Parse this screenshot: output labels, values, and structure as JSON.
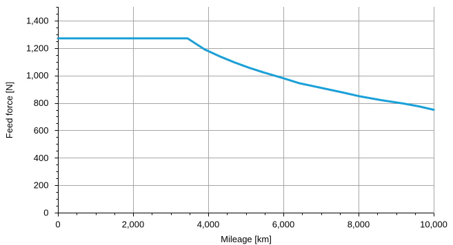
{
  "chart_data": {
    "type": "line",
    "title": "",
    "xlabel": "Mileage [km]",
    "ylabel": "Feed force [N]",
    "xlim": [
      0,
      10000
    ],
    "ylim": [
      0,
      1500
    ],
    "x_ticks": [
      0,
      2000,
      4000,
      6000,
      8000,
      10000
    ],
    "x_tick_labels": [
      "0",
      "2,000",
      "4,000",
      "6,000",
      "8,000",
      "10,000"
    ],
    "y_ticks": [
      0,
      200,
      400,
      600,
      800,
      1000,
      1200,
      1400
    ],
    "y_tick_labels": [
      "0",
      "200",
      "400",
      "600",
      "800",
      "1,000",
      "1,200",
      "1,400"
    ],
    "grid": true,
    "legend": "none",
    "series": [
      {
        "color": "#1aa0d8",
        "x": [
          0,
          3450,
          3900,
          4300,
          4700,
          5100,
          5500,
          6000,
          6400,
          7000,
          7600,
          8000,
          8600,
          9200,
          9600,
          10000
        ],
        "y": [
          1270,
          1270,
          1190,
          1140,
          1095,
          1055,
          1020,
          980,
          945,
          910,
          875,
          850,
          820,
          795,
          775,
          750
        ]
      }
    ]
  }
}
